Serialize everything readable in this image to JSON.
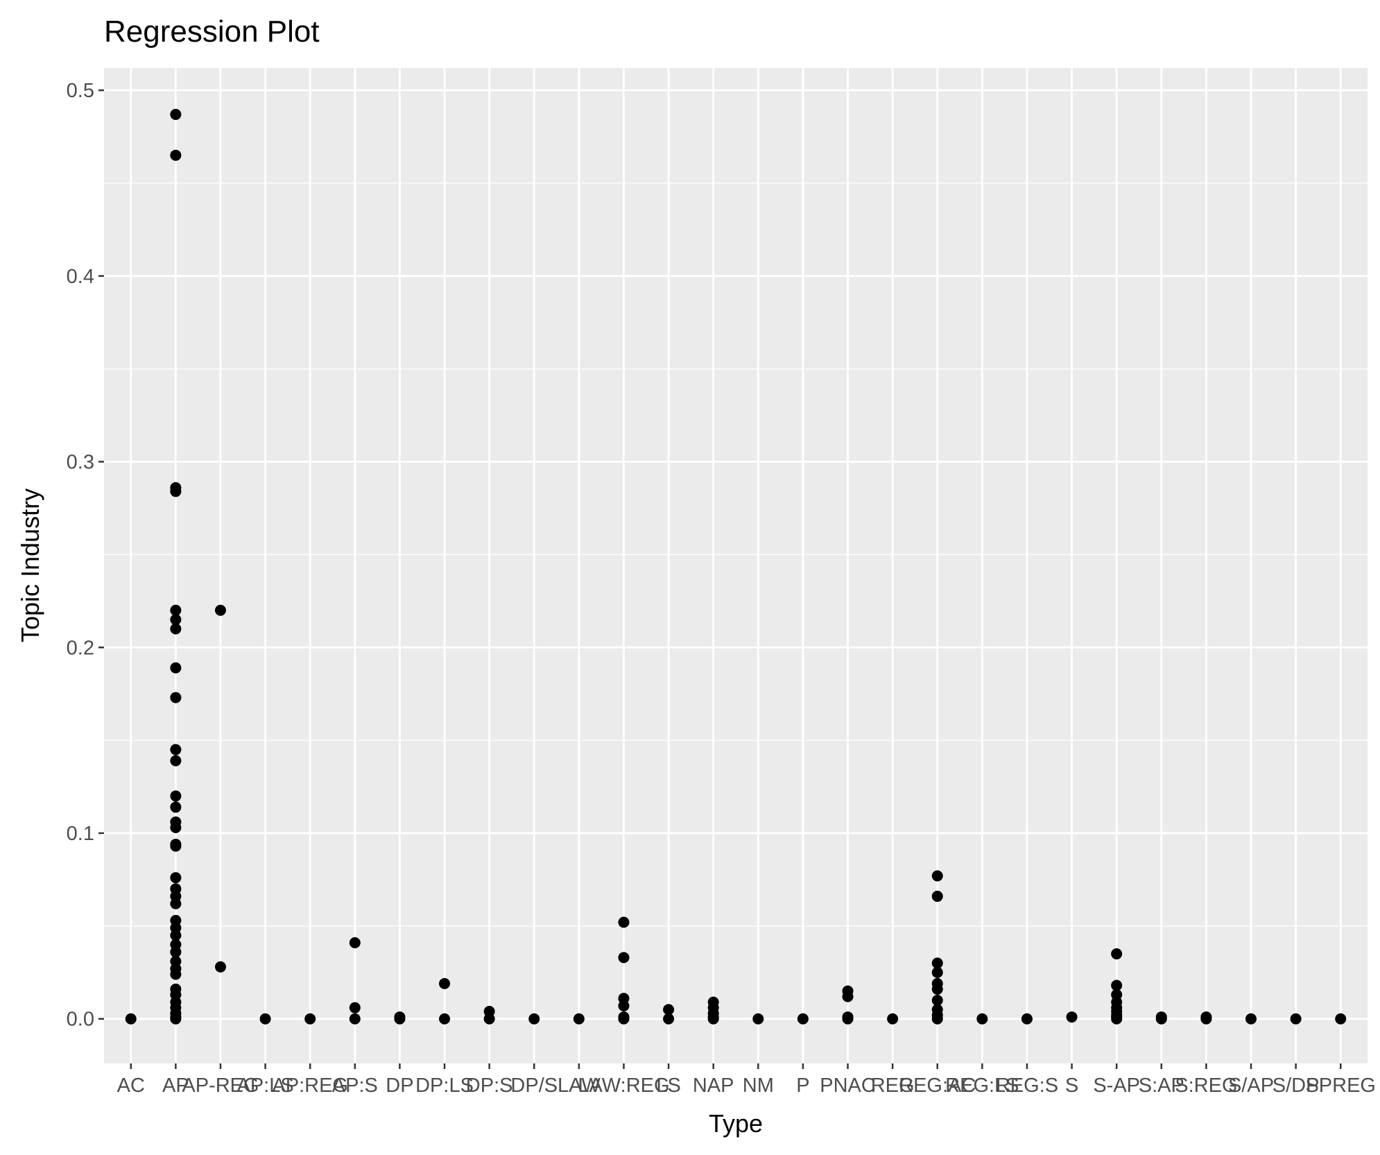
{
  "chart_data": {
    "type": "scatter",
    "title": "Regression Plot",
    "xlabel": "Type",
    "ylabel": "Topic Industry",
    "ylim": [
      -0.024,
      0.512
    ],
    "y_ticks": [
      0.0,
      0.1,
      0.2,
      0.3,
      0.4,
      0.5
    ],
    "y_tick_labels": [
      "0.0",
      "0.1",
      "0.2",
      "0.3",
      "0.4",
      "0.5"
    ],
    "grid": true,
    "legend": "none",
    "categories": [
      "AC",
      "AP",
      "AP-REG",
      "AP:LS",
      "AP:REG",
      "AP:S",
      "DP",
      "DP:LS",
      "DP:S",
      "DP/S",
      "LAW",
      "LAW:REG",
      "LS",
      "NAP",
      "NM",
      "P",
      "PNAC",
      "REG",
      "REG:AC",
      "REG:LS",
      "REG:S",
      "S",
      "S-AP",
      "S:AP",
      "S:REG",
      "S/AP",
      "S/DP",
      "SPREG"
    ],
    "points": [
      {
        "x": "AC",
        "y": 0.0
      },
      {
        "x": "AP",
        "y": 0.487
      },
      {
        "x": "AP",
        "y": 0.465
      },
      {
        "x": "AP",
        "y": 0.286
      },
      {
        "x": "AP",
        "y": 0.284
      },
      {
        "x": "AP",
        "y": 0.22
      },
      {
        "x": "AP",
        "y": 0.215
      },
      {
        "x": "AP",
        "y": 0.21
      },
      {
        "x": "AP",
        "y": 0.189
      },
      {
        "x": "AP",
        "y": 0.173
      },
      {
        "x": "AP",
        "y": 0.145
      },
      {
        "x": "AP",
        "y": 0.139
      },
      {
        "x": "AP",
        "y": 0.12
      },
      {
        "x": "AP",
        "y": 0.114
      },
      {
        "x": "AP",
        "y": 0.106
      },
      {
        "x": "AP",
        "y": 0.103
      },
      {
        "x": "AP",
        "y": 0.094
      },
      {
        "x": "AP",
        "y": 0.093
      },
      {
        "x": "AP",
        "y": 0.076
      },
      {
        "x": "AP",
        "y": 0.07
      },
      {
        "x": "AP",
        "y": 0.066
      },
      {
        "x": "AP",
        "y": 0.062
      },
      {
        "x": "AP",
        "y": 0.053
      },
      {
        "x": "AP",
        "y": 0.049
      },
      {
        "x": "AP",
        "y": 0.045
      },
      {
        "x": "AP",
        "y": 0.04
      },
      {
        "x": "AP",
        "y": 0.036
      },
      {
        "x": "AP",
        "y": 0.031
      },
      {
        "x": "AP",
        "y": 0.027
      },
      {
        "x": "AP",
        "y": 0.024
      },
      {
        "x": "AP",
        "y": 0.016
      },
      {
        "x": "AP",
        "y": 0.013
      },
      {
        "x": "AP",
        "y": 0.009
      },
      {
        "x": "AP",
        "y": 0.006
      },
      {
        "x": "AP",
        "y": 0.003
      },
      {
        "x": "AP",
        "y": 0.001
      },
      {
        "x": "AP",
        "y": 0.0
      },
      {
        "x": "AP-REG",
        "y": 0.22
      },
      {
        "x": "AP-REG",
        "y": 0.028
      },
      {
        "x": "AP:LS",
        "y": 0.0
      },
      {
        "x": "AP:REG",
        "y": 0.0
      },
      {
        "x": "AP:S",
        "y": 0.041
      },
      {
        "x": "AP:S",
        "y": 0.006
      },
      {
        "x": "AP:S",
        "y": 0.0
      },
      {
        "x": "DP",
        "y": 0.001
      },
      {
        "x": "DP",
        "y": 0.0
      },
      {
        "x": "DP:LS",
        "y": 0.019
      },
      {
        "x": "DP:LS",
        "y": 0.0
      },
      {
        "x": "DP:S",
        "y": 0.004
      },
      {
        "x": "DP:S",
        "y": 0.0
      },
      {
        "x": "DP/S",
        "y": 0.0
      },
      {
        "x": "LAW",
        "y": 0.0
      },
      {
        "x": "LAW:REG",
        "y": 0.052
      },
      {
        "x": "LAW:REG",
        "y": 0.033
      },
      {
        "x": "LAW:REG",
        "y": 0.011
      },
      {
        "x": "LAW:REG",
        "y": 0.007
      },
      {
        "x": "LAW:REG",
        "y": 0.001
      },
      {
        "x": "LAW:REG",
        "y": 0.0
      },
      {
        "x": "LS",
        "y": 0.005
      },
      {
        "x": "LS",
        "y": 0.0
      },
      {
        "x": "NAP",
        "y": 0.009
      },
      {
        "x": "NAP",
        "y": 0.006
      },
      {
        "x": "NAP",
        "y": 0.003
      },
      {
        "x": "NAP",
        "y": 0.001
      },
      {
        "x": "NAP",
        "y": 0.0
      },
      {
        "x": "NM",
        "y": 0.0
      },
      {
        "x": "P",
        "y": 0.0
      },
      {
        "x": "PNAC",
        "y": 0.015
      },
      {
        "x": "PNAC",
        "y": 0.012
      },
      {
        "x": "PNAC",
        "y": 0.001
      },
      {
        "x": "PNAC",
        "y": 0.0
      },
      {
        "x": "REG",
        "y": 0.0
      },
      {
        "x": "REG:AC",
        "y": 0.077
      },
      {
        "x": "REG:AC",
        "y": 0.066
      },
      {
        "x": "REG:AC",
        "y": 0.03
      },
      {
        "x": "REG:AC",
        "y": 0.025
      },
      {
        "x": "REG:AC",
        "y": 0.019
      },
      {
        "x": "REG:AC",
        "y": 0.016
      },
      {
        "x": "REG:AC",
        "y": 0.01
      },
      {
        "x": "REG:AC",
        "y": 0.005
      },
      {
        "x": "REG:AC",
        "y": 0.002
      },
      {
        "x": "REG:AC",
        "y": 0.0
      },
      {
        "x": "REG:LS",
        "y": 0.0
      },
      {
        "x": "REG:S",
        "y": 0.0
      },
      {
        "x": "S",
        "y": 0.001
      },
      {
        "x": "S-AP",
        "y": 0.035
      },
      {
        "x": "S-AP",
        "y": 0.018
      },
      {
        "x": "S-AP",
        "y": 0.013
      },
      {
        "x": "S-AP",
        "y": 0.009
      },
      {
        "x": "S-AP",
        "y": 0.006
      },
      {
        "x": "S-AP",
        "y": 0.004
      },
      {
        "x": "S-AP",
        "y": 0.002
      },
      {
        "x": "S-AP",
        "y": 0.001
      },
      {
        "x": "S-AP",
        "y": 0.0
      },
      {
        "x": "S:AP",
        "y": 0.001
      },
      {
        "x": "S:AP",
        "y": 0.0
      },
      {
        "x": "S:REG",
        "y": 0.001
      },
      {
        "x": "S:REG",
        "y": 0.0
      },
      {
        "x": "S/AP",
        "y": 0.0
      },
      {
        "x": "S/DP",
        "y": 0.0
      },
      {
        "x": "SPREG",
        "y": 0.0
      }
    ]
  }
}
